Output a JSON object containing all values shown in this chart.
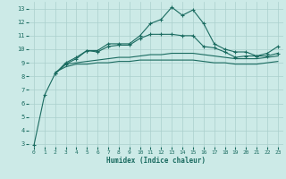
{
  "background_color": "#cceae7",
  "grid_color": "#aacfcc",
  "line_color": "#1a6b60",
  "xlabel": "Humidex (Indice chaleur)",
  "xlim": [
    -0.5,
    23.5
  ],
  "ylim": [
    2.8,
    13.5
  ],
  "xticks": [
    0,
    1,
    2,
    3,
    4,
    5,
    6,
    7,
    8,
    9,
    10,
    11,
    12,
    13,
    14,
    15,
    16,
    17,
    18,
    19,
    20,
    21,
    22,
    23
  ],
  "yticks": [
    3,
    4,
    5,
    6,
    7,
    8,
    9,
    10,
    11,
    12,
    13
  ],
  "line1": {
    "x": [
      0,
      1,
      2,
      3,
      4,
      5,
      6,
      7,
      8,
      9,
      10,
      11,
      12,
      13,
      14,
      15,
      16,
      17,
      18,
      19,
      20,
      21,
      22,
      23
    ],
    "y": [
      2.9,
      6.6,
      8.2,
      8.9,
      9.3,
      9.9,
      9.9,
      10.4,
      10.4,
      10.4,
      11.0,
      11.9,
      12.2,
      13.1,
      12.5,
      12.9,
      11.9,
      10.4,
      10.0,
      9.8,
      9.8,
      9.5,
      9.7,
      10.2
    ]
  },
  "line2": {
    "x": [
      2,
      3,
      4,
      5,
      6,
      7,
      8,
      9,
      10,
      11,
      12,
      13,
      14,
      15,
      16,
      17,
      18,
      19,
      20,
      21,
      22,
      23
    ],
    "y": [
      8.2,
      9.0,
      9.4,
      9.9,
      9.8,
      10.2,
      10.3,
      10.3,
      10.8,
      11.1,
      11.1,
      11.1,
      11.0,
      11.0,
      10.2,
      10.1,
      9.8,
      9.4,
      9.5,
      9.5,
      9.5,
      9.7
    ]
  },
  "line3": {
    "x": [
      2,
      3,
      4,
      5,
      6,
      7,
      8,
      9,
      10,
      11,
      12,
      13,
      14,
      15,
      16,
      17,
      18,
      19,
      20,
      21,
      22,
      23
    ],
    "y": [
      8.2,
      8.9,
      9.0,
      9.1,
      9.2,
      9.3,
      9.4,
      9.4,
      9.5,
      9.6,
      9.6,
      9.7,
      9.7,
      9.7,
      9.6,
      9.5,
      9.4,
      9.3,
      9.3,
      9.3,
      9.4,
      9.5
    ]
  },
  "line4": {
    "x": [
      2,
      3,
      4,
      5,
      6,
      7,
      8,
      9,
      10,
      11,
      12,
      13,
      14,
      15,
      16,
      17,
      18,
      19,
      20,
      21,
      22,
      23
    ],
    "y": [
      8.3,
      8.7,
      8.9,
      8.9,
      9.0,
      9.0,
      9.1,
      9.1,
      9.2,
      9.2,
      9.2,
      9.2,
      9.2,
      9.2,
      9.1,
      9.0,
      9.0,
      8.9,
      8.9,
      8.9,
      9.0,
      9.1
    ]
  }
}
